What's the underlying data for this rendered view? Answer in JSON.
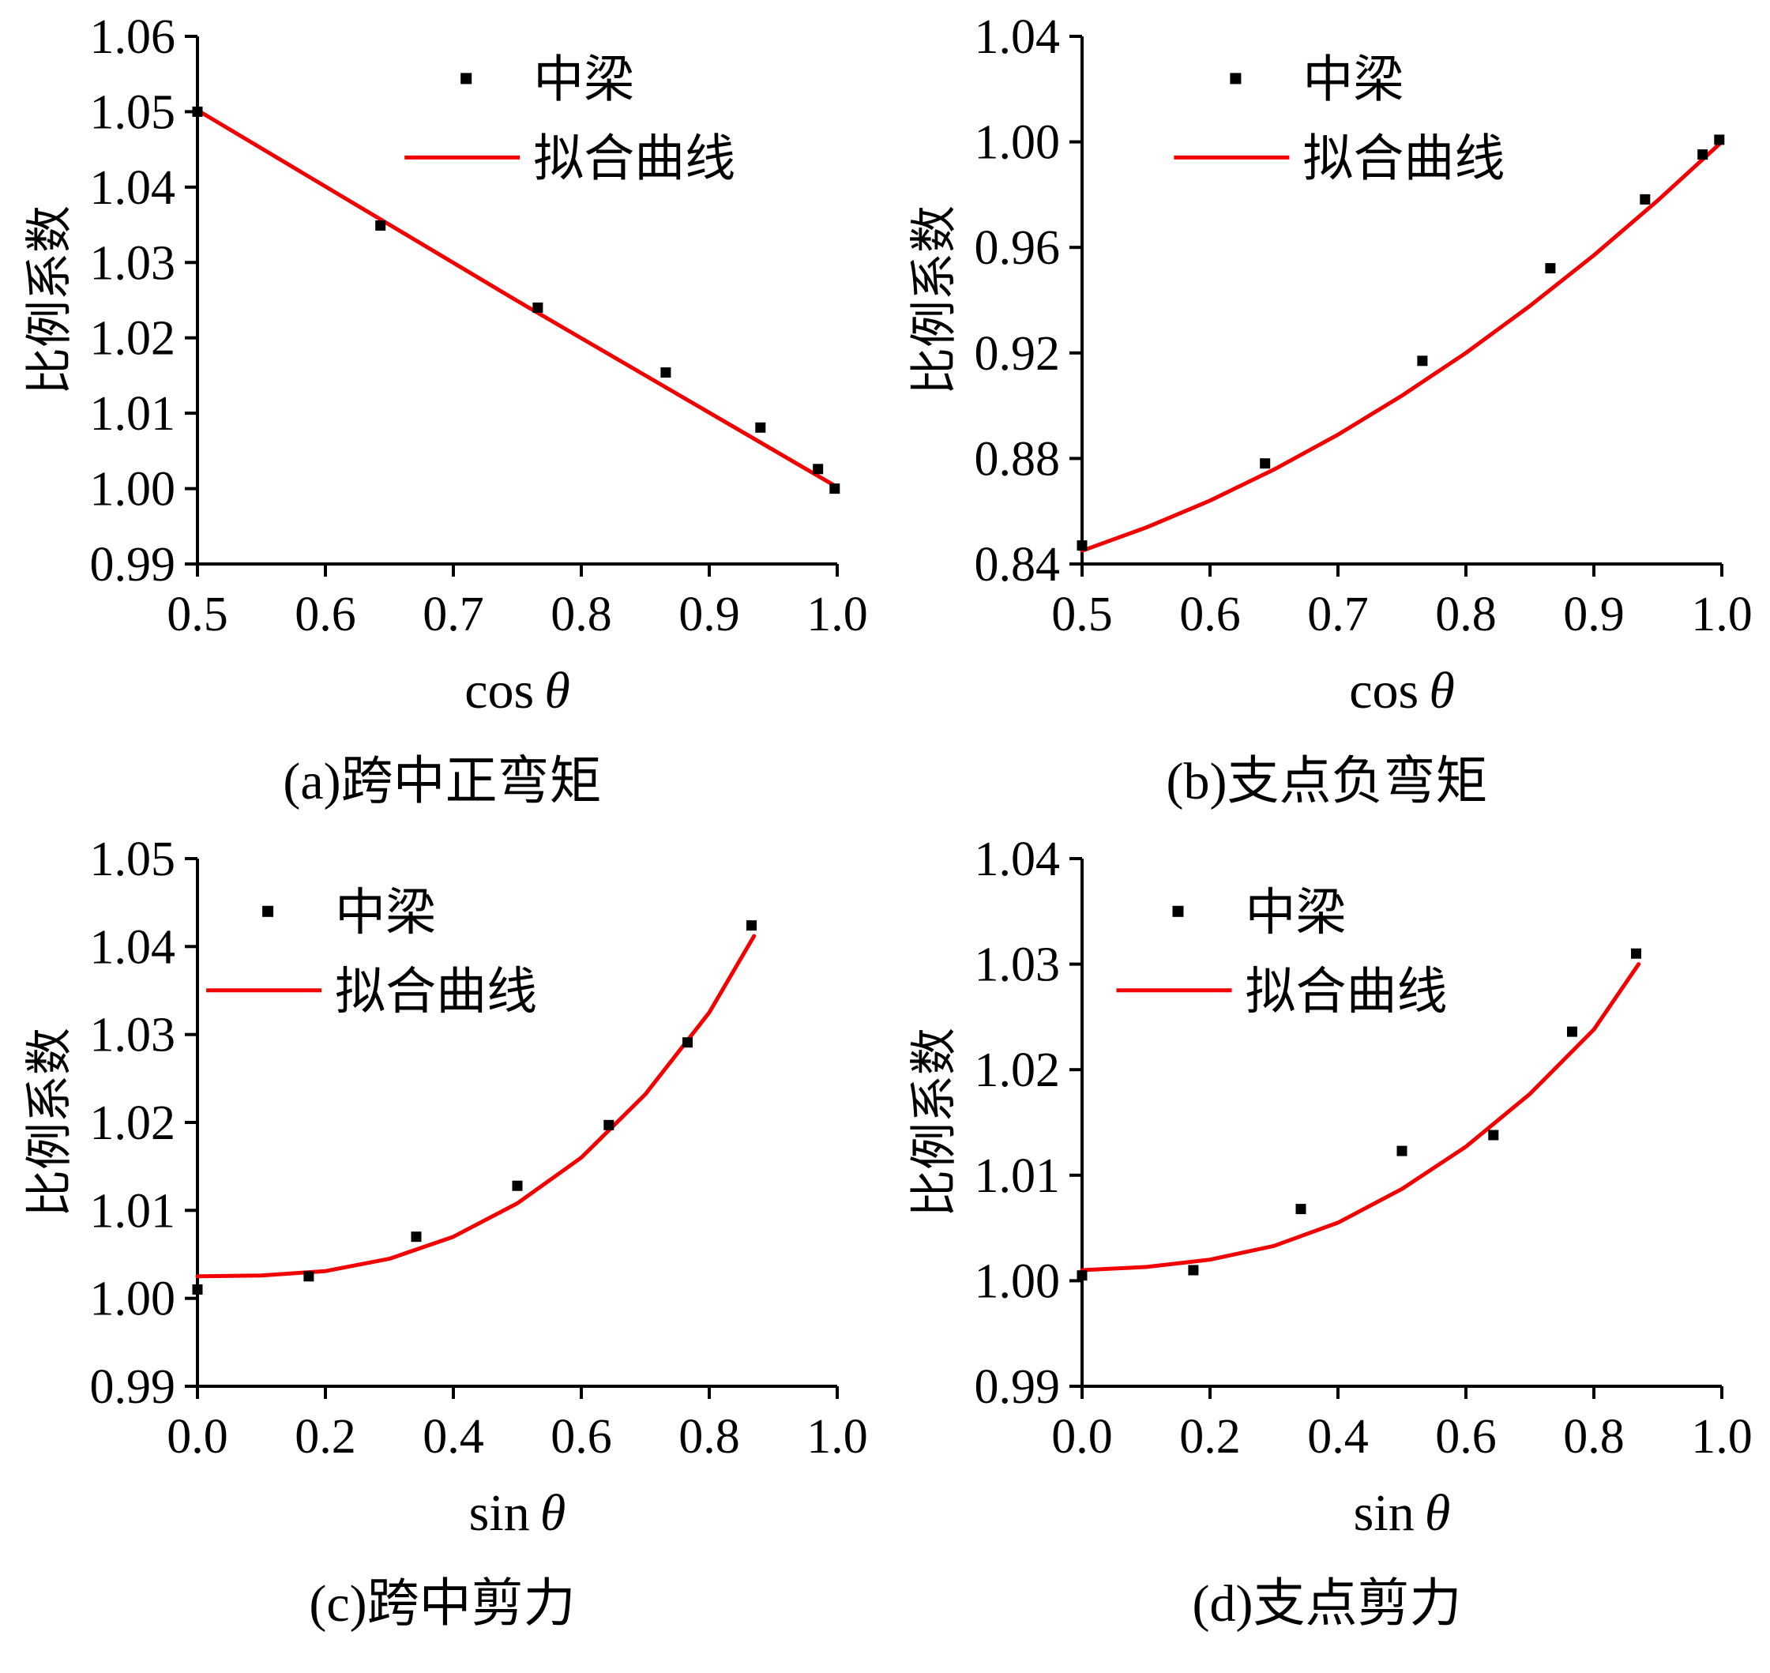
{
  "figure": {
    "background": "#ffffff"
  },
  "colors": {
    "line": "#f20000",
    "marker": "#000000",
    "axis": "#000000",
    "text": "#000000"
  },
  "chart_data": [
    {
      "id": "a",
      "type": "scatter",
      "caption": "(a)跨中正弯矩",
      "ylabel": "比例系数",
      "xlabel_func": "cos",
      "xlabel_var": "θ",
      "legend_marker_label": "中梁",
      "legend_line_label": "拟合曲线",
      "legend_pos": {
        "x": 0.42,
        "y": 0.08
      },
      "xlim": [
        0.5,
        1.0
      ],
      "ylim": [
        0.99,
        1.06
      ],
      "x_tick_vals": [
        0.5,
        0.6,
        0.7,
        0.8,
        0.9,
        1.0
      ],
      "x_tick_labels": [
        "0.5",
        "0.6",
        "0.7",
        "0.8",
        "0.9",
        "1.0"
      ],
      "y_tick_vals": [
        0.99,
        1.0,
        1.01,
        1.02,
        1.03,
        1.04,
        1.05,
        1.06
      ],
      "y_tick_labels": [
        "0.99",
        "1.00",
        "1.01",
        "1.02",
        "1.03",
        "1.04",
        "1.05",
        "1.06"
      ],
      "scatter": [
        [
          0.5,
          1.05
        ],
        [
          0.643,
          1.0349
        ],
        [
          0.766,
          1.024
        ],
        [
          0.866,
          1.0154
        ],
        [
          0.94,
          1.0081
        ],
        [
          0.985,
          1.0026
        ],
        [
          0.998,
          1.0
        ]
      ],
      "curve": [
        [
          0.5,
          1.0502
        ],
        [
          0.75,
          1.0249
        ],
        [
          1.0,
          1.0002
        ]
      ]
    },
    {
      "id": "b",
      "type": "scatter",
      "caption": "(b)支点负弯矩",
      "ylabel": "比例系数",
      "xlabel_func": "cos",
      "xlabel_var": "θ",
      "legend_marker_label": "中梁",
      "legend_line_label": "拟合曲线",
      "legend_pos": {
        "x": 0.24,
        "y": 0.08
      },
      "xlim": [
        0.5,
        1.0
      ],
      "ylim": [
        0.84,
        1.04
      ],
      "x_tick_vals": [
        0.5,
        0.6,
        0.7,
        0.8,
        0.9,
        1.0
      ],
      "x_tick_labels": [
        "0.5",
        "0.6",
        "0.7",
        "0.8",
        "0.9",
        "1.0"
      ],
      "y_tick_vals": [
        0.84,
        0.88,
        0.92,
        0.96,
        1.0,
        1.04
      ],
      "y_tick_labels": [
        "0.84",
        "0.88",
        "0.92",
        "0.96",
        "1.00",
        "1.04"
      ],
      "scatter": [
        [
          0.5,
          0.847
        ],
        [
          0.643,
          0.8781
        ],
        [
          0.766,
          0.917
        ],
        [
          0.866,
          0.9521
        ],
        [
          0.94,
          0.9782
        ],
        [
          0.985,
          0.9952
        ],
        [
          0.998,
          1.0008
        ]
      ],
      "curve": [
        [
          0.5,
          0.845
        ],
        [
          0.55,
          0.8538
        ],
        [
          0.6,
          0.864
        ],
        [
          0.65,
          0.8758
        ],
        [
          0.7,
          0.889
        ],
        [
          0.75,
          0.9038
        ],
        [
          0.8,
          0.92
        ],
        [
          0.85,
          0.9378
        ],
        [
          0.9,
          0.957
        ],
        [
          0.95,
          0.9778
        ],
        [
          1.0,
          1.0
        ]
      ]
    },
    {
      "id": "c",
      "type": "scatter",
      "caption": "(c)跨中剪力",
      "ylabel": "比例系数",
      "xlabel_func": "sin",
      "xlabel_var": "θ",
      "legend_marker_label": "中梁",
      "legend_line_label": "拟合曲线",
      "legend_pos": {
        "x": 0.11,
        "y": 0.1
      },
      "xlim": [
        0.0,
        1.0
      ],
      "ylim": [
        0.99,
        1.05
      ],
      "x_tick_vals": [
        0.0,
        0.2,
        0.4,
        0.6,
        0.8,
        1.0
      ],
      "x_tick_labels": [
        "0.0",
        "0.2",
        "0.4",
        "0.6",
        "0.8",
        "1.0"
      ],
      "y_tick_vals": [
        0.99,
        1.0,
        1.01,
        1.02,
        1.03,
        1.04,
        1.05
      ],
      "y_tick_labels": [
        "0.99",
        "1.00",
        "1.01",
        "1.02",
        "1.03",
        "1.04",
        "1.05"
      ],
      "scatter": [
        [
          0.0,
          1.001
        ],
        [
          0.174,
          1.0025
        ],
        [
          0.342,
          1.007
        ],
        [
          0.5,
          1.0128
        ],
        [
          0.643,
          1.0197
        ],
        [
          0.766,
          1.0291
        ],
        [
          0.866,
          1.0424
        ]
      ],
      "curve": [
        [
          0.0,
          1.0025
        ],
        [
          0.1,
          1.0026
        ],
        [
          0.2,
          1.0031
        ],
        [
          0.3,
          1.0045
        ],
        [
          0.4,
          1.007
        ],
        [
          0.5,
          1.0108
        ],
        [
          0.6,
          1.016
        ],
        [
          0.7,
          1.0232
        ],
        [
          0.8,
          1.0325
        ],
        [
          0.87,
          1.0412
        ]
      ]
    },
    {
      "id": "d",
      "type": "scatter",
      "caption": "(d)支点剪力",
      "ylabel": "比例系数",
      "xlabel_func": "sin",
      "xlabel_var": "θ",
      "legend_marker_label": "中梁",
      "legend_line_label": "拟合曲线",
      "legend_pos": {
        "x": 0.15,
        "y": 0.1
      },
      "xlim": [
        0.0,
        1.0
      ],
      "ylim": [
        0.99,
        1.04
      ],
      "x_tick_vals": [
        0.0,
        0.2,
        0.4,
        0.6,
        0.8,
        1.0
      ],
      "x_tick_labels": [
        "0.0",
        "0.2",
        "0.4",
        "0.6",
        "0.8",
        "1.0"
      ],
      "y_tick_vals": [
        0.99,
        1.0,
        1.01,
        1.02,
        1.03,
        1.04
      ],
      "y_tick_labels": [
        "0.99",
        "1.00",
        "1.01",
        "1.02",
        "1.03",
        "1.04"
      ],
      "scatter": [
        [
          0.0,
          1.0005
        ],
        [
          0.174,
          1.001
        ],
        [
          0.342,
          1.0068
        ],
        [
          0.5,
          1.0123
        ],
        [
          0.643,
          1.0138
        ],
        [
          0.766,
          1.0236
        ],
        [
          0.866,
          1.031
        ]
      ],
      "curve": [
        [
          0.0,
          1.001
        ],
        [
          0.1,
          1.0013
        ],
        [
          0.2,
          1.002
        ],
        [
          0.3,
          1.0033
        ],
        [
          0.4,
          1.0055
        ],
        [
          0.5,
          1.0087
        ],
        [
          0.6,
          1.0127
        ],
        [
          0.7,
          1.0177
        ],
        [
          0.8,
          1.0238
        ],
        [
          0.87,
          1.03
        ]
      ]
    }
  ]
}
